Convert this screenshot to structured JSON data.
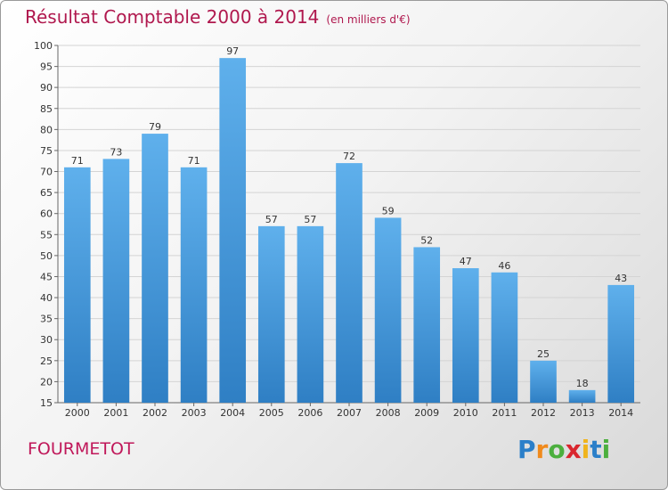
{
  "chart_data": {
    "type": "bar",
    "title": "Résultat Comptable 2000 à 2014",
    "subtitle": "(en milliers d'€)",
    "categories": [
      "2000",
      "2001",
      "2002",
      "2003",
      "2004",
      "2005",
      "2006",
      "2007",
      "2008",
      "2009",
      "2010",
      "2011",
      "2012",
      "2013",
      "2014"
    ],
    "values": [
      71,
      73,
      79,
      71,
      97,
      57,
      57,
      72,
      59,
      52,
      47,
      46,
      25,
      18,
      43
    ],
    "ylim": [
      15,
      100
    ],
    "yticks": [
      15,
      20,
      25,
      30,
      35,
      40,
      45,
      50,
      55,
      60,
      65,
      70,
      75,
      80,
      85,
      90,
      95,
      100
    ],
    "grid": true,
    "bar_color": "#4d9fe0"
  },
  "footer": {
    "place_name": "FOURMETOT",
    "logo_letters": [
      {
        "ch": "P",
        "color": "#2b7fc9"
      },
      {
        "ch": "r",
        "color": "#f08a1c"
      },
      {
        "ch": "o",
        "color": "#4caf3e"
      },
      {
        "ch": "x",
        "color": "#d9262e"
      },
      {
        "ch": "i",
        "color": "#f0b41c"
      },
      {
        "ch": "t",
        "color": "#2b7fc9"
      },
      {
        "ch": "i",
        "color": "#4caf3e"
      }
    ]
  }
}
